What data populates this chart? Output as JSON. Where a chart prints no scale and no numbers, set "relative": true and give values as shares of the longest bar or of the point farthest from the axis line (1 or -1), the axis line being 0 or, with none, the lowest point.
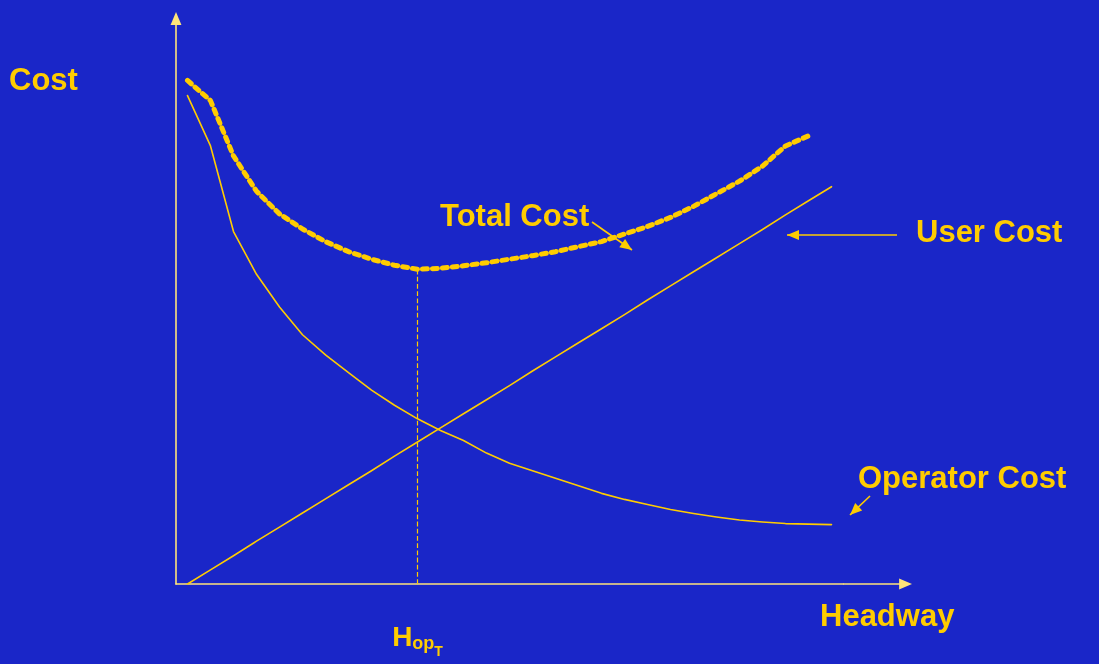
{
  "chart_data": {
    "type": "line",
    "relative": true,
    "xlabel": "Headway",
    "ylabel": "Cost",
    "grid": false,
    "marker": "none",
    "categories": [
      null,
      null,
      null,
      null,
      null,
      null,
      null,
      null,
      null,
      null,
      null,
      null,
      null,
      null,
      null,
      null,
      null,
      null,
      null,
      null,
      null,
      null,
      null,
      null,
      null,
      null,
      null,
      null,
      null
    ],
    "series": [
      {
        "name": "Total Cost",
        "color": "#ffcc00",
        "line_style": "dotted",
        "values": [
          1.0,
          0.96,
          0.85,
          0.78,
          0.735,
          0.705,
          0.68,
          0.66,
          0.645,
          0.633,
          0.625,
          0.627,
          0.632,
          0.638,
          0.645,
          0.652,
          0.66,
          0.67,
          0.68,
          0.695,
          0.71,
          0.728,
          0.75,
          0.775,
          0.8,
          0.83,
          0.87,
          0.89,
          null
        ]
      },
      {
        "name": "User Cost",
        "color": "#ffcc00",
        "line_style": "solid",
        "values": [
          0,
          0.028,
          0.056,
          0.085,
          0.113,
          0.141,
          0.169,
          0.197,
          0.225,
          0.254,
          0.282,
          0.31,
          0.338,
          0.366,
          0.394,
          0.423,
          0.451,
          0.479,
          0.507,
          0.535,
          0.564,
          0.592,
          0.62,
          0.648,
          0.676,
          0.704,
          0.733,
          0.761,
          0.789
        ]
      },
      {
        "name": "Operator Cost",
        "color": "#ffcc00",
        "line_style": "solid",
        "values": [
          0.97,
          0.87,
          0.7,
          0.615,
          0.55,
          0.495,
          0.455,
          0.42,
          0.385,
          0.355,
          0.328,
          0.305,
          0.285,
          0.26,
          0.24,
          0.225,
          0.21,
          0.195,
          0.18,
          0.168,
          0.158,
          0.148,
          0.14,
          0.133,
          0.127,
          0.123,
          0.12,
          0.119,
          0.118
        ]
      }
    ],
    "ref_lines": [
      {
        "axis": "x",
        "label": "H$_{op}$$_{T}$",
        "color": "#ffcc00",
        "line_style": "dashed"
      }
    ]
  }
}
